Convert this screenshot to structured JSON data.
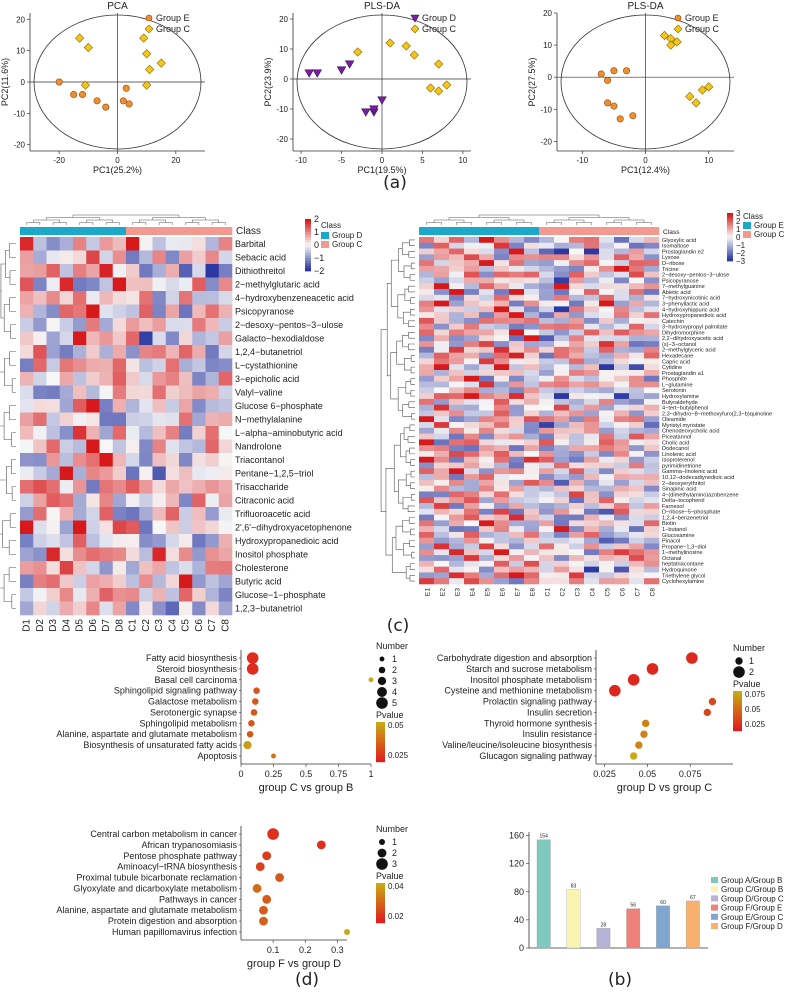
{
  "panel_labels": {
    "a": "(a)",
    "b": "(b)",
    "c": "(c)",
    "d": "(d)"
  },
  "colors": {
    "groupE": "#F28E2B",
    "groupC": "#F5C518",
    "groupD": "#7B1FA2",
    "bar_heatmap_D": "#1BA8C9",
    "bar_heatmap_C": "#F29A8F",
    "heat_high": "#D7191C",
    "heat_mid": "#F7F7F7",
    "heat_low": "#2C39A3"
  },
  "chart_data": [
    {
      "id": "pca",
      "type": "scatter",
      "title": "PCA",
      "xlabel": "PC1(25.2%)",
      "ylabel": "PC2(11.6%)",
      "xlim": [
        -30,
        30
      ],
      "ylim": [
        -22,
        22
      ],
      "xticks": [
        -20,
        0,
        20
      ],
      "yticks": [
        20,
        10,
        0,
        -10,
        -20
      ],
      "legend": [
        "Group E",
        "Group C"
      ],
      "series": [
        {
          "name": "Group E",
          "marker": "circle",
          "points": [
            [
              -20,
              0
            ],
            [
              -15,
              -4
            ],
            [
              -12,
              -4
            ],
            [
              -7,
              -6
            ],
            [
              -4,
              -8
            ],
            [
              2,
              -6
            ],
            [
              3,
              -2
            ],
            [
              4,
              -7
            ]
          ]
        },
        {
          "name": "Group C",
          "marker": "diamond",
          "points": [
            [
              -13,
              14
            ],
            [
              -10,
              11
            ],
            [
              -11,
              -1
            ],
            [
              9,
              14
            ],
            [
              10,
              9
            ],
            [
              11,
              4
            ],
            [
              10,
              -1
            ],
            [
              15,
              6
            ]
          ]
        }
      ]
    },
    {
      "id": "plsda1",
      "type": "scatter",
      "title": "PLS-DA",
      "xlabel": "PC1(19.5%)",
      "ylabel": "PC2(23.9%)",
      "xlim": [
        -11,
        11
      ],
      "ylim": [
        -24,
        22
      ],
      "xticks": [
        -10,
        -5,
        0,
        5,
        10
      ],
      "yticks": [
        20,
        10,
        0,
        -10,
        -20
      ],
      "legend": [
        "Group D",
        "Group C"
      ],
      "series": [
        {
          "name": "Group D",
          "marker": "triangle",
          "points": [
            [
              -9,
              2
            ],
            [
              -8,
              2
            ],
            [
              -5,
              3
            ],
            [
              -4,
              5
            ],
            [
              -2,
              -11
            ],
            [
              -1,
              -11
            ],
            [
              -1,
              -10
            ],
            [
              0,
              -7
            ]
          ]
        },
        {
          "name": "Group C",
          "marker": "diamond",
          "points": [
            [
              -3,
              9
            ],
            [
              1,
              12
            ],
            [
              3,
              11
            ],
            [
              4,
              8
            ],
            [
              7,
              5
            ],
            [
              6,
              -3
            ],
            [
              7,
              -4
            ],
            [
              8,
              -2
            ]
          ]
        }
      ]
    },
    {
      "id": "plsda2",
      "type": "scatter",
      "title": "PLS-DA",
      "xlabel": "PC1(12.4%)",
      "ylabel": "PC2(27.5%)",
      "xlim": [
        -14,
        14
      ],
      "ylim": [
        -23,
        20
      ],
      "xticks": [
        -10,
        0,
        10
      ],
      "yticks": [
        20,
        10,
        0,
        -10,
        -20
      ],
      "legend": [
        "Group E",
        "Group C"
      ],
      "series": [
        {
          "name": "Group E",
          "marker": "circle",
          "points": [
            [
              -7,
              1
            ],
            [
              -5,
              2
            ],
            [
              -3,
              2
            ],
            [
              -6,
              -1
            ],
            [
              -6,
              -8
            ],
            [
              -5,
              -9
            ],
            [
              -4,
              -13
            ],
            [
              -2,
              -12
            ]
          ]
        },
        {
          "name": "Group C",
          "marker": "diamond",
          "points": [
            [
              3,
              13
            ],
            [
              4,
              12
            ],
            [
              5,
              11
            ],
            [
              7,
              -6
            ],
            [
              8,
              -8
            ],
            [
              9,
              -4
            ],
            [
              10,
              -3
            ],
            [
              4,
              10
            ]
          ]
        }
      ]
    },
    {
      "id": "heatmap_left",
      "type": "heatmap",
      "legend_title": "Class",
      "legend": [
        "Group D",
        "Group C"
      ],
      "scale_ticks": [
        "2",
        "1",
        "0",
        "−1",
        "−2"
      ],
      "columns": [
        "D1",
        "D2",
        "D3",
        "D4",
        "D5",
        "D6",
        "D7",
        "D8",
        "C1",
        "C2",
        "C3",
        "C4",
        "C5",
        "C6",
        "C7",
        "C8"
      ],
      "rows": [
        "Barbital",
        "Sebacic acid",
        "Dithiothreitol",
        "2−methylglutaric acid",
        "4−hydroxybenzeneacetic acid",
        "Psicopyranose",
        "2−desoxy−pentos−3−ulose",
        "Galacto−hexodialdose",
        "1,2,4−butanetriol",
        "L−cystathionine",
        "3−epicholic acid",
        "Valyl−valine",
        "Glucose 6−phosphate",
        "N−methylalanine",
        "L−alpha−aminobutyric acid",
        "Nandrolone",
        "Triacontanol",
        "Pentane−1,2,5−triol",
        "Trisaccharide",
        "Citraconic acid",
        "Trifluoroacetic acid",
        "2',6'−dihydroxyacetophenone",
        "Hydroxypropanedioic acid",
        "Inositol phosphate",
        "Cholesterone",
        "Butyric acid",
        "Glucose−1−phosphate",
        "1,2,3−butanetriol"
      ]
    },
    {
      "id": "heatmap_right",
      "type": "heatmap",
      "legend_title": "Class",
      "legend": [
        "Group E",
        "Group C"
      ],
      "scale_ticks": [
        "3",
        "2",
        "1",
        "0",
        "−1",
        "−2",
        "−3"
      ],
      "columns": [
        "E1",
        "E2",
        "E3",
        "E4",
        "E5",
        "E6",
        "E7",
        "E8",
        "C1",
        "C2",
        "C3",
        "C4",
        "C5",
        "C6",
        "C7",
        "C8"
      ],
      "rows": [
        "Glyoxylic acid",
        "Isomaltose",
        "Prostaglandin e2",
        "Lyxose",
        "D−ribose",
        "Tricine",
        "2−desoxy−pentos−3−ulose",
        "Psicopyranose",
        "7−methylguanine",
        "Abietic acid",
        "7−hydroxynicotinic acid",
        "3−phenyllactic acid",
        "4−hydroxyhippuric acid",
        "Hydroxypropanedioic acid",
        "Catechin",
        "3−hydroxypropyl palmitate",
        "Dihydromorphine",
        "2,2−dihydroxyacetic acid",
        "(s)−3−octanol",
        "2−methylglyceric acid",
        "Hexadecane",
        "Capric acid",
        "Cytidine",
        "Prostaglandin a1",
        "Phosphite",
        "L−glutamine",
        "Serotonin",
        "Hydroxylamine",
        "Butyraldehyde",
        "4−tert−butylphenol",
        "2,3−dihydro−8−methoxyfuro(2,3−b)quinoline",
        "Oleamide",
        "Myristyl myristate",
        "Chenodeoxycholic acid",
        "Piceatannol",
        "Cholic acid",
        "Dodecanol",
        "Linolenic acid",
        "Isoproterenol",
        "pyrimidinetrione",
        "Gamma−linolenic acid",
        "10,12−dodecadiynedioic acid",
        "2−deoxyerythritol",
        "Sinapinic acid",
        "4−(dimethylamino)azobenzene",
        "Delta−tocopherol",
        "Farnesol",
        "D−ribose−5−phosphate",
        "1,2,4−benzenetriol",
        "Biotin",
        "1−butanol",
        "Glucosamine",
        "Pinacol",
        "Propane−1,3−diol",
        "1−methylinosine",
        "Octanal",
        "heptatriacontane",
        "Hydroquinone",
        "Triethylene glycol",
        "Cyclohexylamine"
      ]
    },
    {
      "id": "enrich_cb",
      "type": "scatter",
      "xlabel": "group C vs group B",
      "xlim": [
        0,
        1.0
      ],
      "xticks": [
        0.0,
        0.25,
        0.5,
        0.75,
        1.0
      ],
      "size_legend_title": "Number",
      "size_legend": [
        1,
        2,
        3,
        4,
        5
      ],
      "color_legend_title": "Pvalue",
      "color_ticks": [
        0.05,
        0.025
      ],
      "pathways": [
        "Fatty acid biosynthesis",
        "Steroid biosynthesis",
        "Basal cell carcinoma",
        "Sphingolipid signaling pathway",
        "Galactose metabolism",
        "Serotonergic synapse",
        "Sphingolipid metabolism",
        "Alanine, aspartate and glutamate metabolism",
        "Biosynthesis of unsaturated fatty acids",
        "Apoptosis"
      ],
      "x": [
        0.09,
        0.09,
        1.0,
        0.12,
        0.11,
        0.1,
        0.08,
        0.07,
        0.05,
        0.25
      ],
      "number": [
        5,
        5,
        1,
        2,
        2,
        2,
        2,
        2,
        3,
        1
      ],
      "pvalue": [
        0.005,
        0.005,
        0.05,
        0.02,
        0.02,
        0.02,
        0.02,
        0.02,
        0.045,
        0.03
      ]
    },
    {
      "id": "enrich_dc",
      "type": "scatter",
      "xlabel": "group D vs group C",
      "xlim": [
        0.02,
        0.1
      ],
      "xticks": [
        0.025,
        0.05,
        0.075
      ],
      "size_legend_title": "Number",
      "size_legend": [
        1,
        2
      ],
      "color_legend_title": "Pvalue",
      "color_ticks": [
        0.075,
        0.05,
        0.025
      ],
      "pathways": [
        "Carbohydrate digestion and absorption",
        "Starch and sucrose metabolism",
        "Inositol phosphate metabolism",
        "Cysteine and methionine metabolism",
        "Prolactin signaling pathway",
        "Insulin secretion",
        "Thyroid hormone synthesis",
        "Insulin resistance",
        "Valine/leucine/isoleucine biosynthesis",
        "Glucagon signaling pathway"
      ],
      "x": [
        0.076,
        0.053,
        0.042,
        0.031,
        0.088,
        0.085,
        0.049,
        0.048,
        0.045,
        0.042
      ],
      "number": [
        2,
        2,
        2,
        2,
        1,
        1,
        1,
        1,
        1,
        1
      ],
      "pvalue": [
        0.005,
        0.005,
        0.005,
        0.005,
        0.02,
        0.02,
        0.05,
        0.05,
        0.05,
        0.07
      ]
    },
    {
      "id": "enrich_fd",
      "type": "scatter",
      "xlabel": "group F vs group D",
      "xlim": [
        0.0,
        0.33
      ],
      "xticks": [
        0.1,
        0.2,
        0.3
      ],
      "size_legend_title": "Number",
      "size_legend": [
        1,
        2,
        3
      ],
      "color_legend_title": "Pvalue",
      "color_ticks": [
        0.04,
        0.02
      ],
      "pathways": [
        "Central carbon metabolism in cancer",
        "African trypanosomiasis",
        "Pentose phosphate pathway",
        "Aminoacyl−tRNA biosynthesis",
        "Proximal tubule bicarbonate reclamation",
        "Glyoxylate and dicarboxylate metabolism",
        "Pathways in cancer",
        "Alanine, aspartate and glutamate metabolism",
        "Protein digestion and absorption",
        "Human papillomavirus infection"
      ],
      "x": [
        0.1,
        0.25,
        0.08,
        0.06,
        0.12,
        0.05,
        0.08,
        0.07,
        0.07,
        0.33
      ],
      "number": [
        3,
        2,
        2,
        2,
        2,
        2,
        2,
        2,
        2,
        1
      ],
      "pvalue": [
        0.005,
        0.005,
        0.01,
        0.012,
        0.018,
        0.025,
        0.02,
        0.02,
        0.022,
        0.045
      ]
    },
    {
      "id": "bar_counts",
      "type": "bar",
      "categories": [
        "Group A/Group B",
        "Group C/Group B",
        "Group D/Group C",
        "Group F/Group E",
        "Group E/Group C",
        "Group F/Group D"
      ],
      "values": [
        154,
        83,
        28,
        56,
        60,
        67
      ],
      "colors": [
        "#7FC8BE",
        "#FBF4B0",
        "#B7B3D6",
        "#F0807A",
        "#7FA6CE",
        "#F8B06E"
      ],
      "ylim": [
        0,
        165
      ],
      "yticks": [
        0,
        40,
        80,
        120,
        160
      ]
    }
  ]
}
